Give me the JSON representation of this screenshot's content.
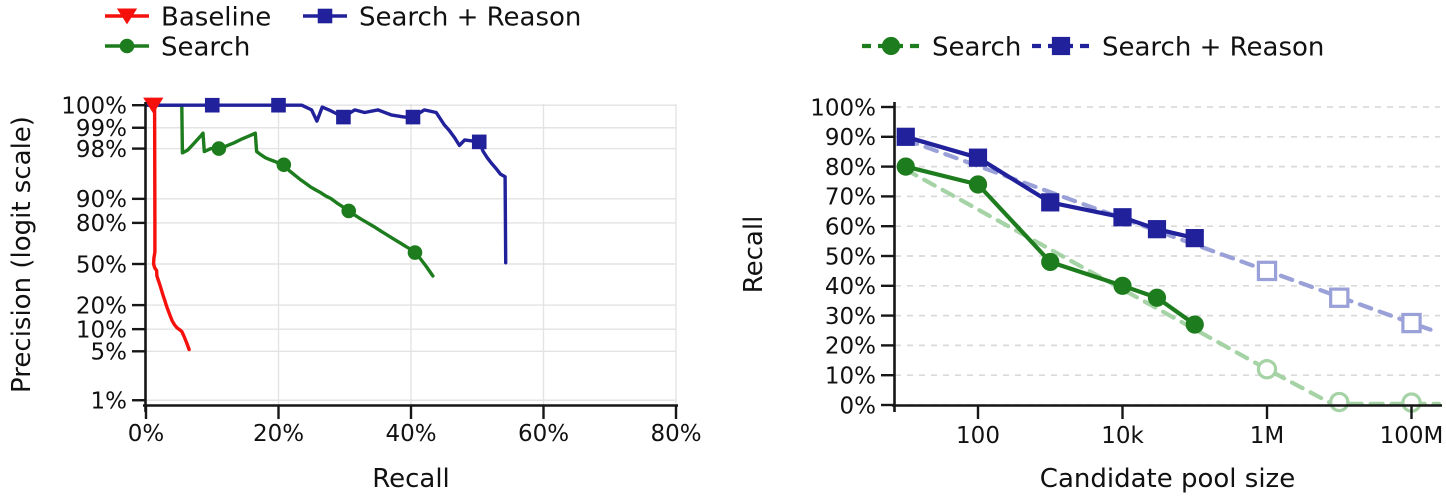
{
  "page": {
    "background": "#ffffff"
  },
  "chart_data": [
    {
      "name": "precision-recall-curve",
      "type": "line",
      "title": "",
      "xlabel": "Recall",
      "ylabel": "Precision (logit scale)",
      "x_axis": {
        "scale": "linear",
        "min": 0,
        "max": 80,
        "ticks": [
          0,
          20,
          40,
          60,
          80
        ],
        "tick_labels": [
          "0%",
          "20%",
          "40%",
          "60%",
          "80%"
        ]
      },
      "y_axis": {
        "scale": "logit",
        "min": 1,
        "max": 100,
        "ticks": [
          100,
          99,
          98,
          90,
          80,
          50,
          20,
          10,
          5,
          1
        ],
        "tick_labels": [
          "100%",
          "99%",
          "98%",
          "90%",
          "80%",
          "50%",
          "20%",
          "10%",
          "5%",
          "1%"
        ]
      },
      "grid": "solid light gray, horizontal at y ticks and vertical at x ticks",
      "legend_position": "top-left, two rows, no frame",
      "legend": [
        {
          "label": "Baseline",
          "color": "#f5100c",
          "marker": "triangle-down",
          "line": "solid"
        },
        {
          "label": "Search + Reason",
          "color": "#21219b",
          "marker": "square",
          "line": "solid"
        },
        {
          "label": "Search",
          "color": "#1d7c1d",
          "marker": "circle",
          "line": "solid"
        }
      ],
      "series": [
        {
          "name": "Search",
          "color": "#1d7c1d",
          "marker": "circle",
          "line": "solid",
          "points": [
            [
              0,
              100
            ],
            [
              5.4,
              100
            ],
            [
              5.5,
              97.7
            ],
            [
              6.3,
              97.9
            ],
            [
              7.2,
              98.3
            ],
            [
              8.3,
              98.7
            ],
            [
              8.6,
              98.8
            ],
            [
              8.8,
              97.8
            ],
            [
              9.3,
              97.9
            ],
            [
              9.8,
              98.0
            ],
            [
              11,
              98.0
            ],
            [
              12,
              98.15
            ],
            [
              13.3,
              98.35
            ],
            [
              14.5,
              98.55
            ],
            [
              15.7,
              98.7
            ],
            [
              16.5,
              98.8
            ],
            [
              16.7,
              97.8
            ],
            [
              17.2,
              97.6
            ],
            [
              18,
              97.3
            ],
            [
              18.8,
              97.1
            ],
            [
              19.8,
              96.85
            ],
            [
              20.8,
              96.6
            ],
            [
              21.6,
              95.9
            ],
            [
              22.4,
              95.3
            ],
            [
              23.2,
              94.6
            ],
            [
              24,
              93.9
            ],
            [
              24.8,
              93.1
            ],
            [
              25.6,
              92.4
            ],
            [
              26.4,
              91.7
            ],
            [
              27.1,
              90.9
            ],
            [
              27.9,
              90.1
            ],
            [
              28.8,
              88.7
            ],
            [
              29.7,
              87.3
            ],
            [
              30.6,
              85.7
            ],
            [
              31.5,
              83.9
            ],
            [
              32.4,
              82.1
            ],
            [
              33.3,
              80.3
            ],
            [
              34.4,
              77.9
            ],
            [
              35.5,
              75.1
            ],
            [
              36.6,
              72.1
            ],
            [
              37.7,
              69
            ],
            [
              38.5,
              66.6
            ],
            [
              39.3,
              64.1
            ],
            [
              40,
              62
            ],
            [
              40.6,
              59.5
            ],
            [
              41.4,
              54.5
            ],
            [
              42.3,
              48
            ],
            [
              43.3,
              40
            ]
          ],
          "marker_points": [
            [
              11,
              98.0
            ],
            [
              20.8,
              96.6
            ],
            [
              30.6,
              85.7
            ],
            [
              40.6,
              59.5
            ]
          ]
        },
        {
          "name": "Search + Reason",
          "color": "#21219b",
          "marker": "square",
          "line": "solid",
          "points": [
            [
              0,
              100
            ],
            [
              13,
              100
            ],
            [
              14.5,
              100
            ],
            [
              15.3,
              99.75
            ],
            [
              16.3,
              99.55
            ],
            [
              17.3,
              99.75
            ],
            [
              19,
              99.85
            ],
            [
              22,
              99.85
            ],
            [
              23.5,
              99.6
            ],
            [
              25,
              99.45
            ],
            [
              25.8,
              99.2
            ],
            [
              26.6,
              99.5
            ],
            [
              27.6,
              99.45
            ],
            [
              29.8,
              99.3
            ],
            [
              31.5,
              99.45
            ],
            [
              33,
              99.4
            ],
            [
              35,
              99.45
            ],
            [
              37,
              99.35
            ],
            [
              39,
              99.3
            ],
            [
              40.3,
              99.3
            ],
            [
              42,
              99.45
            ],
            [
              43.8,
              99.4
            ],
            [
              45,
              99.1
            ],
            [
              45.8,
              98.9
            ],
            [
              46.6,
              98.6
            ],
            [
              47.3,
              98.2
            ],
            [
              48.1,
              98.5
            ],
            [
              49.2,
              98.45
            ],
            [
              50.3,
              98.4
            ],
            [
              50.9,
              97.8
            ],
            [
              51.5,
              97.3
            ],
            [
              52.1,
              96.8
            ],
            [
              52.8,
              96.2
            ],
            [
              53.5,
              95.4
            ],
            [
              54.2,
              95
            ],
            [
              54.3,
              51
            ]
          ],
          "marker_points": [
            [
              10,
              100
            ],
            [
              20,
              100
            ],
            [
              29.8,
              99.3
            ],
            [
              40.3,
              99.3
            ],
            [
              50.3,
              98.4
            ]
          ]
        },
        {
          "name": "Baseline",
          "color": "#f5100c",
          "marker": "triangle-down",
          "line": "solid",
          "points": [
            [
              0.9,
              100
            ],
            [
              1.3,
              100
            ],
            [
              1.35,
              80
            ],
            [
              1.35,
              60
            ],
            [
              1.2,
              55
            ],
            [
              1.15,
              50
            ],
            [
              1.3,
              47
            ],
            [
              1.6,
              44.5
            ],
            [
              1.65,
              40
            ],
            [
              1.9,
              36
            ],
            [
              2.1,
              33
            ],
            [
              2.35,
              29
            ],
            [
              2.6,
              25.5
            ],
            [
              2.85,
              22.5
            ],
            [
              3.1,
              19.5
            ],
            [
              3.4,
              16.8
            ],
            [
              3.7,
              14.5
            ],
            [
              3.95,
              12.8
            ],
            [
              4.3,
              11.4
            ],
            [
              4.7,
              10.4
            ],
            [
              5.1,
              9.8
            ],
            [
              5.4,
              9.3
            ],
            [
              5.8,
              7.8
            ],
            [
              6.2,
              6.3
            ],
            [
              6.5,
              5.3
            ]
          ],
          "marker_points": [
            [
              1.1,
              100
            ]
          ]
        }
      ]
    },
    {
      "name": "recall-vs-candidate-pool-size",
      "type": "line",
      "title": "",
      "xlabel": "Candidate pool size",
      "ylabel": "Recall",
      "x_axis": {
        "scale": "log",
        "min": 7,
        "max": 250000000,
        "ticks": [
          100,
          10000,
          1000000,
          100000000
        ],
        "tick_labels": [
          "100",
          "10k",
          "1M",
          "100M"
        ]
      },
      "y_axis": {
        "scale": "linear",
        "min": 0,
        "max": 100,
        "ticks": [
          0,
          10,
          20,
          30,
          40,
          50,
          60,
          70,
          80,
          90,
          100
        ],
        "tick_labels": [
          "0%",
          "10%",
          "20%",
          "30%",
          "40%",
          "50%",
          "60%",
          "70%",
          "80%",
          "90%",
          "100%"
        ]
      },
      "grid": "dashed light gray, horizontal at y ticks only",
      "legend_position": "top-center, one row, no frame",
      "legend": [
        {
          "label": "Search",
          "color": "#1d7c1d",
          "marker": "circle",
          "line": "dashed"
        },
        {
          "label": "Search + Reason",
          "color": "#21219b",
          "marker": "square",
          "line": "dashed"
        }
      ],
      "series": [
        {
          "name": "Search + Reason trend (extrapolation)",
          "color": "#9aa0d8",
          "marker": "none",
          "line": "dashed",
          "points": [
            [
              10,
              89
            ],
            [
              100000000,
              27.5
            ],
            [
              240000000,
              24.3
            ]
          ]
        },
        {
          "name": "Search trend (extrapolation)",
          "color": "#a5d3a5",
          "marker": "none",
          "line": "dashed",
          "points": [
            [
              10,
              79
            ],
            [
              1000000,
              12
            ],
            [
              7900000,
              0.4
            ],
            [
              240000000,
              0.4
            ]
          ]
        },
        {
          "name": "Search",
          "color": "#1d7c1d",
          "marker": "circle",
          "line": "solid",
          "points": [
            [
              10,
              80
            ],
            [
              100,
              74
            ],
            [
              1000,
              48
            ],
            [
              10000,
              40
            ],
            [
              30000,
              36
            ],
            [
              100000,
              27
            ]
          ],
          "marker_points": [
            [
              10,
              80
            ],
            [
              100,
              74
            ],
            [
              1000,
              48
            ],
            [
              10000,
              40
            ],
            [
              30000,
              36
            ],
            [
              100000,
              27
            ]
          ]
        },
        {
          "name": "Search + Reason",
          "color": "#21219b",
          "marker": "square",
          "line": "solid",
          "points": [
            [
              10,
              90
            ],
            [
              100,
              83
            ],
            [
              1000,
              68
            ],
            [
              10000,
              63
            ],
            [
              30000,
              59
            ],
            [
              100000,
              56
            ]
          ],
          "marker_points": [
            [
              10,
              90
            ],
            [
              100,
              83
            ],
            [
              1000,
              68
            ],
            [
              10000,
              63
            ],
            [
              30000,
              59
            ],
            [
              100000,
              56
            ]
          ]
        },
        {
          "name": "Search extrapolated points",
          "color": "#a5d3a5",
          "marker": "circle-open",
          "line": "none",
          "points": [],
          "marker_points": [
            [
              1000000,
              12
            ],
            [
              10000000,
              1
            ],
            [
              100000000,
              0.8
            ]
          ]
        },
        {
          "name": "Search + Reason extrapolated points",
          "color": "#9aa0d8",
          "marker": "square-open",
          "line": "none",
          "points": [],
          "marker_points": [
            [
              1000000,
              45
            ],
            [
              10000000,
              36
            ],
            [
              100000000,
              27.5
            ]
          ]
        }
      ]
    }
  ]
}
